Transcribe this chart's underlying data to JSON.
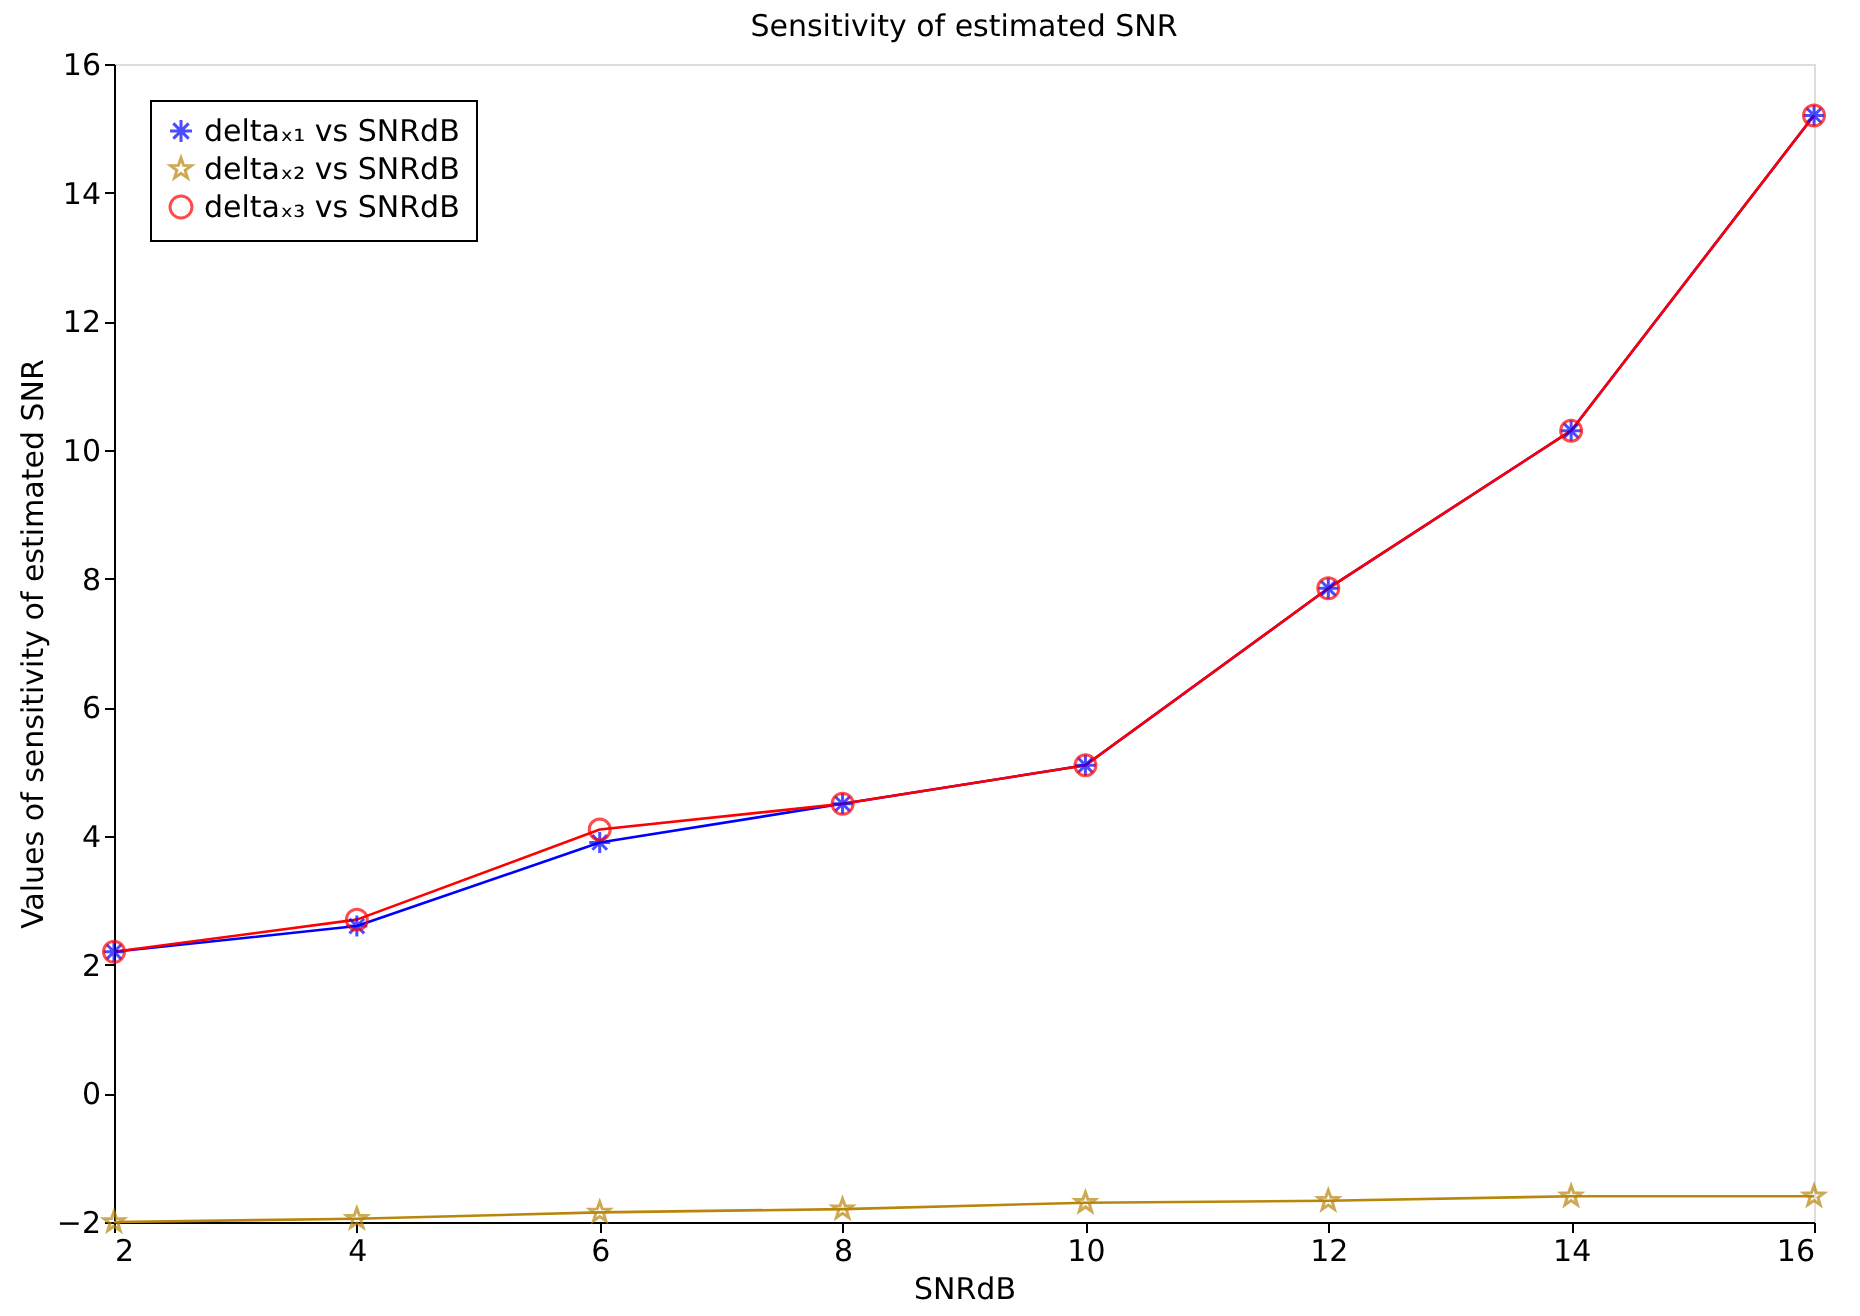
{
  "chart_data": {
    "type": "line",
    "title": "Sensitivity of estimated SNR",
    "xlabel": "SNRdB",
    "ylabel": "Values of sensitivity of estimated SNR",
    "x": [
      2,
      4,
      6,
      8,
      10,
      12,
      14,
      16
    ],
    "series": [
      {
        "name": "deltaₓ₁ vs SNRdB",
        "color": "#0000ff",
        "marker": "cross",
        "values": [
          2.2,
          2.6,
          3.9,
          4.5,
          5.1,
          7.85,
          10.3,
          15.2
        ]
      },
      {
        "name": "deltaₓ₂ vs SNRdB",
        "color": "#b8860b",
        "marker": "star",
        "values": [
          -2.0,
          -1.95,
          -1.85,
          -1.8,
          -1.7,
          -1.67,
          -1.6,
          -1.6
        ]
      },
      {
        "name": "deltaₓ₃ vs SNRdB",
        "color": "#ff0000",
        "marker": "circle",
        "values": [
          2.2,
          2.7,
          4.1,
          4.5,
          5.1,
          7.85,
          10.3,
          15.2
        ]
      }
    ],
    "xlim": [
      2,
      16
    ],
    "xticks": [
      2,
      4,
      6,
      8,
      10,
      12,
      14,
      16
    ],
    "ylim": [
      -2,
      16
    ],
    "yticks": [
      -2,
      0,
      2,
      4,
      6,
      8,
      10,
      12,
      14,
      16
    ],
    "grid": false,
    "legend": "top left",
    "line_style": "solid"
  }
}
